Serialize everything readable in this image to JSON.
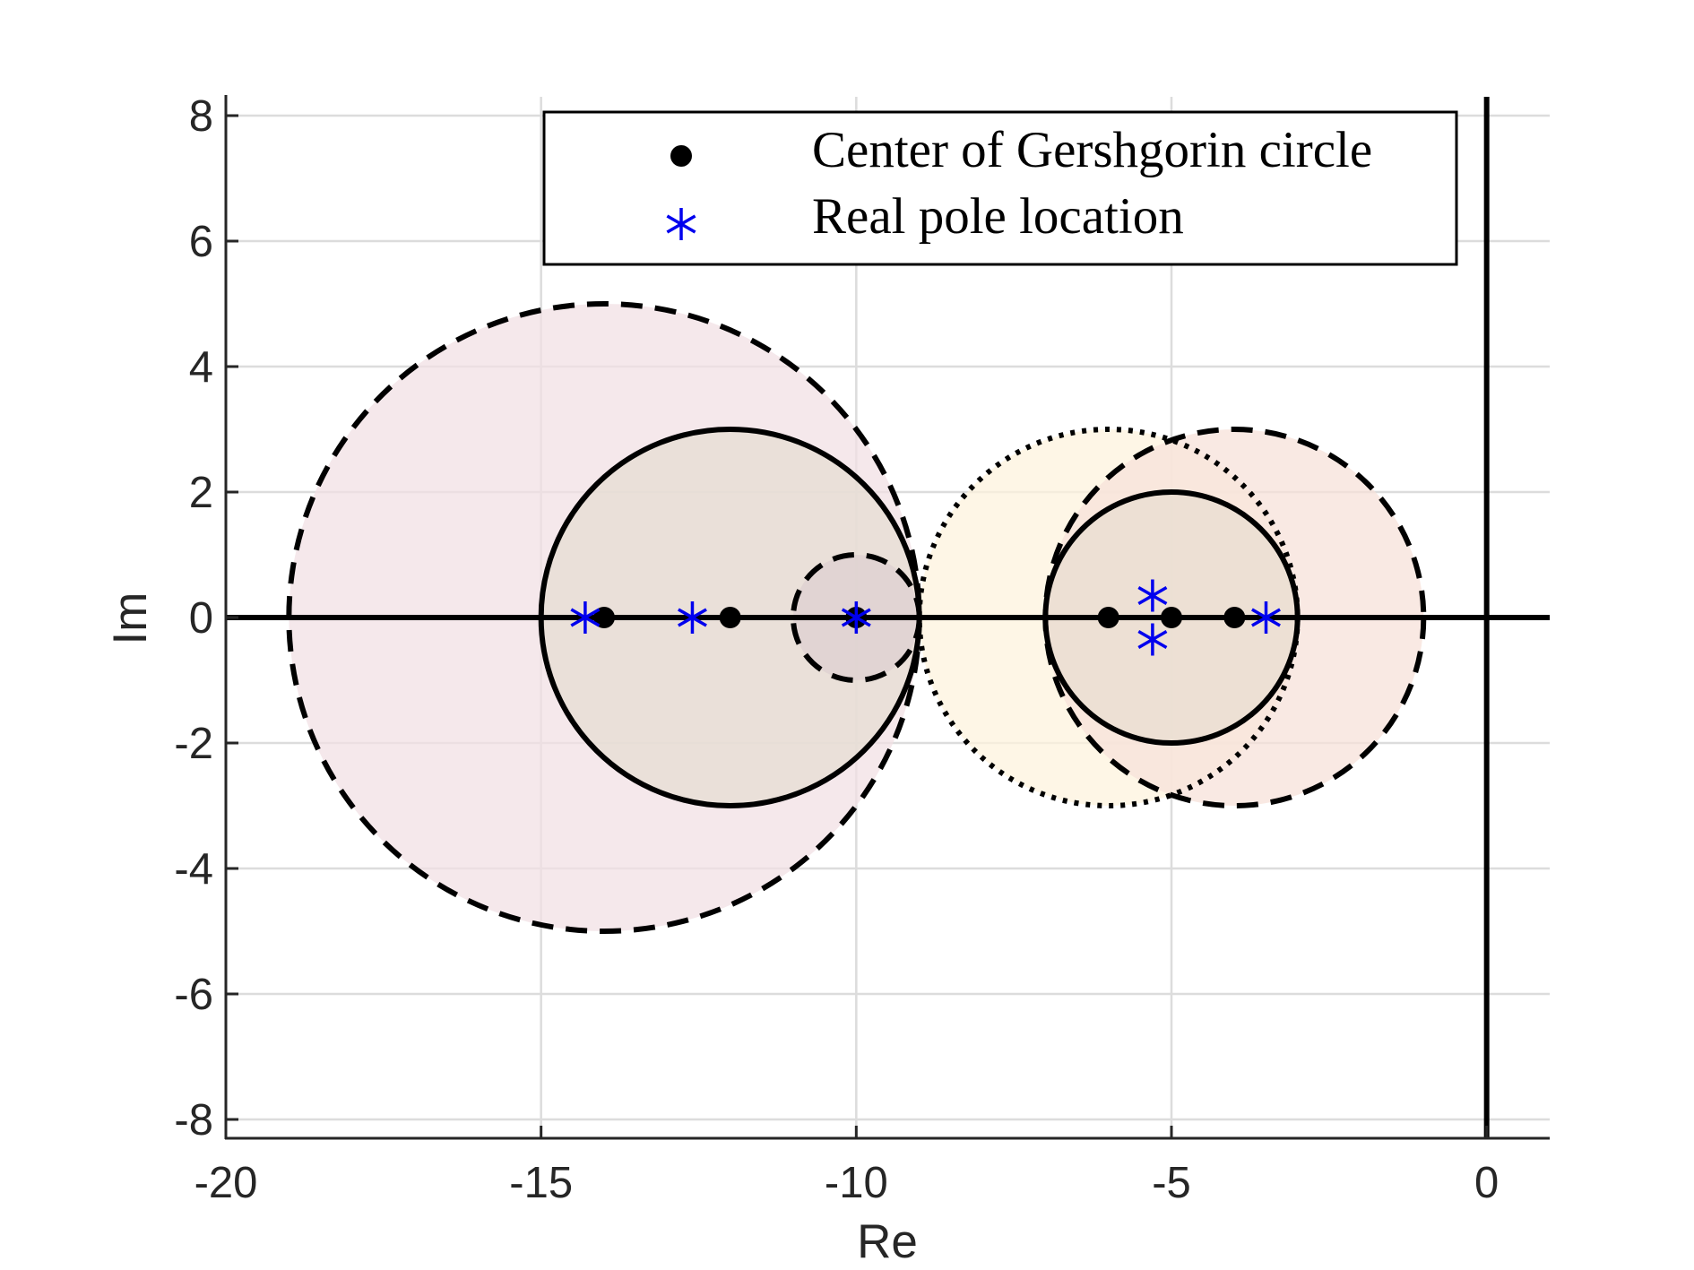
{
  "chart_data": {
    "type": "scatter",
    "xlabel": "Re",
    "ylabel": "Im",
    "xlim": [
      -20,
      1
    ],
    "ylim": [
      -8.3,
      8.3
    ],
    "x_ticks": [
      -20,
      -15,
      -10,
      -5,
      0
    ],
    "y_ticks": [
      8,
      6,
      4,
      2,
      0,
      -2,
      -4,
      -6,
      -8
    ],
    "x_tick_labels": [
      "-20",
      "-15",
      "-10",
      "-5",
      "0"
    ],
    "y_tick_labels": [
      "8",
      "6",
      "4",
      "2",
      "0",
      "-2",
      "-4",
      "-6",
      "-8"
    ],
    "grid": true,
    "legend_position": "top-right",
    "colors": {
      "circle_stroke": "#000000",
      "center_marker": "#000000",
      "pole_marker": "#0000ee",
      "grid": "#dcdcdc",
      "axis": "#262626"
    },
    "gershgorin_circles": [
      {
        "center": [
          -14,
          0
        ],
        "radius": 5,
        "line_style": "dashed",
        "fill": "#f2e0e4"
      },
      {
        "center": [
          -12,
          0
        ],
        "radius": 3,
        "line_style": "solid",
        "fill": "#e6ddd3"
      },
      {
        "center": [
          -10,
          0
        ],
        "radius": 1,
        "line_style": "dashed",
        "fill": "#ddd0d0"
      },
      {
        "center": [
          -6,
          0
        ],
        "radius": 3,
        "line_style": "dotted",
        "fill": "#fdf3de"
      },
      {
        "center": [
          -4,
          0
        ],
        "radius": 3,
        "line_style": "dashed",
        "fill": "#f7e1da"
      },
      {
        "center": [
          -5,
          0
        ],
        "radius": 2,
        "line_style": "solid",
        "fill": "#e8ddd0"
      }
    ],
    "series": [
      {
        "name": "Center of Gershgorin circle",
        "marker": "filled-circle",
        "points": [
          [
            -14,
            0
          ],
          [
            -12,
            0
          ],
          [
            -10,
            0
          ],
          [
            -6,
            0
          ],
          [
            -5,
            0
          ],
          [
            -4,
            0
          ]
        ]
      },
      {
        "name": "Real pole location",
        "marker": "asterisk",
        "points": [
          [
            -14.3,
            0
          ],
          [
            -12.6,
            0
          ],
          [
            -10,
            0
          ],
          [
            -5.3,
            0.35
          ],
          [
            -5.3,
            -0.35
          ],
          [
            -3.5,
            0
          ]
        ]
      }
    ]
  }
}
